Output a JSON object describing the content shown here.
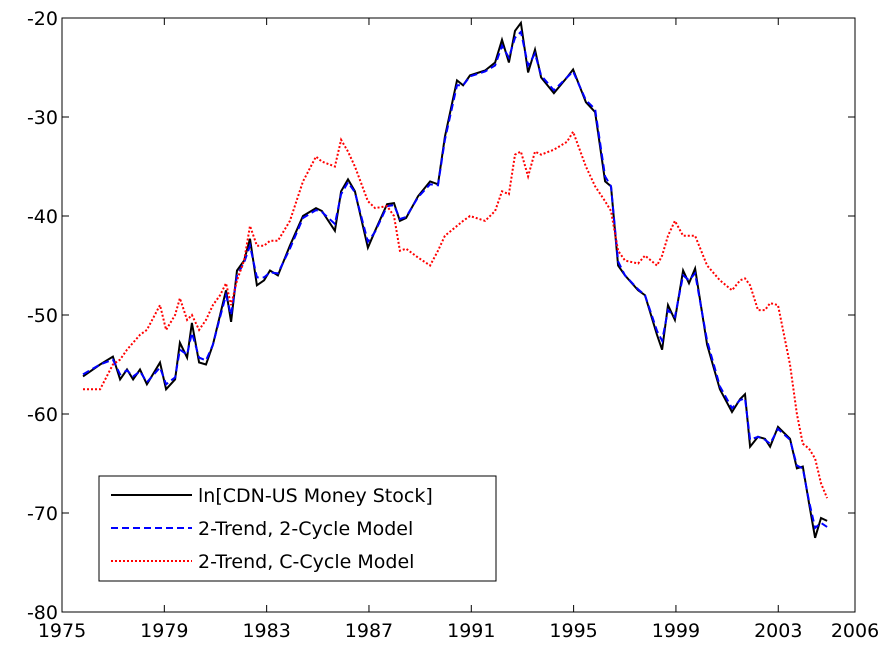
{
  "chart_data": {
    "type": "line",
    "x": [
      1975.82,
      1976.49,
      1976.99,
      1977.27,
      1977.54,
      1977.78,
      1978.05,
      1978.32,
      1978.83,
      1979.07,
      1979.42,
      1979.61,
      1979.89,
      1980.08,
      1980.36,
      1980.63,
      1980.9,
      1981.18,
      1981.41,
      1981.61,
      1981.84,
      1982.12,
      1982.35,
      1982.62,
      1982.9,
      1983.13,
      1983.44,
      1983.91,
      1984.42,
      1984.93,
      1985.16,
      1985.67,
      1985.91,
      1986.18,
      1986.45,
      1986.96,
      1987.24,
      1987.71,
      1987.98,
      1988.21,
      1988.45,
      1988.92,
      1989.39,
      1989.7,
      1989.97,
      1990.44,
      1990.68,
      1990.95,
      1991.54,
      1991.93,
      1992.2,
      1992.47,
      1992.71,
      1992.94,
      1993.22,
      1993.49,
      1993.73,
      1994.23,
      1994.74,
      1994.98,
      1995.48,
      1995.84,
      1996.23,
      1996.46,
      1996.74,
      1997.01,
      1997.52,
      1997.79,
      1998.26,
      1998.46,
      1998.69,
      1998.96,
      1999.28,
      1999.51,
      1999.75,
      2000.22,
      2000.72,
      2001.19,
      2001.51,
      2001.7,
      2001.9,
      2002.21,
      2002.48,
      2002.68,
      2002.99,
      2003.46,
      2003.73,
      2003.96,
      2004.2,
      2004.44,
      2004.67,
      2004.91
    ],
    "series": [
      {
        "name": "ln[CDN-US Money Stock]",
        "color": "#000000",
        "style": "solid",
        "values": [
          -56.2,
          -55,
          -54.2,
          -56.5,
          -55.5,
          -56.5,
          -55.5,
          -57,
          -54.8,
          -57.5,
          -56.5,
          -52.8,
          -54.3,
          -50.8,
          -54.8,
          -55,
          -53,
          -50,
          -47.5,
          -50.7,
          -45.5,
          -44.5,
          -42.3,
          -47,
          -46.5,
          -45.5,
          -46,
          -43,
          -40,
          -39.2,
          -39.5,
          -41.5,
          -37.5,
          -36.3,
          -37.5,
          -43.2,
          -41.5,
          -38.8,
          -38.7,
          -40.5,
          -40.2,
          -38,
          -36.5,
          -36.8,
          -32,
          -26.3,
          -26.8,
          -25.8,
          -25.3,
          -24.5,
          -22.2,
          -24.5,
          -21.3,
          -20.5,
          -25.5,
          -23.2,
          -26,
          -27.6,
          -26,
          -25.2,
          -28.5,
          -29.5,
          -36.5,
          -37,
          -45,
          -46,
          -47.5,
          -48,
          -52,
          -53.5,
          -49,
          -50.5,
          -45.5,
          -46.8,
          -45.3,
          -53,
          -57.5,
          -59.8,
          -58.5,
          -58,
          -63.3,
          -62.3,
          -62.5,
          -63.3,
          -61.3,
          -62.5,
          -65.5,
          -65.3,
          -69,
          -72.5,
          -70.5,
          -70.8
        ]
      },
      {
        "name": "2-Trend, 2-Cycle Model",
        "color": "#0000ff",
        "style": "dashed",
        "values": [
          -56,
          -55,
          -54.5,
          -56,
          -55.6,
          -56.2,
          -55.7,
          -56.8,
          -55.3,
          -57,
          -56.3,
          -53.5,
          -54,
          -51.8,
          -54.3,
          -54.6,
          -53,
          -50.2,
          -48,
          -50,
          -46,
          -44.7,
          -43,
          -46.2,
          -46.2,
          -45.7,
          -45.8,
          -43.3,
          -40.2,
          -39.4,
          -39.6,
          -40.8,
          -37.8,
          -36.6,
          -37.6,
          -42.6,
          -41.6,
          -39,
          -38.9,
          -40.3,
          -40.1,
          -38.1,
          -36.8,
          -36.9,
          -32.3,
          -26.8,
          -26.8,
          -25.9,
          -25.4,
          -24.8,
          -22.8,
          -24,
          -22,
          -21.4,
          -24.8,
          -23.6,
          -25.8,
          -27.3,
          -26,
          -25.4,
          -28.3,
          -29.2,
          -36,
          -37,
          -44.6,
          -46,
          -47.4,
          -48,
          -51.6,
          -52.6,
          -49.5,
          -50.2,
          -46,
          -46.5,
          -45.8,
          -52.6,
          -57.2,
          -59.4,
          -58.6,
          -58.4,
          -62.6,
          -62.3,
          -62.6,
          -63,
          -61.5,
          -62.6,
          -65.2,
          -65.5,
          -68.8,
          -71.5,
          -71,
          -71.4
        ]
      },
      {
        "name": "2-Trend, C-Cycle Model",
        "color": "#ff0000",
        "style": "dotted",
        "values": [
          -57.5,
          -57.5,
          -55,
          -54.5,
          -53.5,
          -52.8,
          -52,
          -51.5,
          -49,
          -51.5,
          -50,
          -48.3,
          -50.5,
          -50,
          -51.5,
          -50.5,
          -49,
          -48,
          -46.8,
          -49,
          -46.5,
          -44.5,
          -41,
          -43,
          -43,
          -42.5,
          -42.5,
          -40.5,
          -36.5,
          -34,
          -34.5,
          -35,
          -32.3,
          -33.5,
          -35,
          -38.5,
          -39.2,
          -39,
          -40,
          -43.5,
          -43.3,
          -44.2,
          -45,
          -43.5,
          -42,
          -41,
          -40.5,
          -40,
          -40.5,
          -39.5,
          -37.5,
          -37.8,
          -33.8,
          -33.5,
          -36,
          -33.5,
          -33.8,
          -33.3,
          -32.5,
          -31.5,
          -35,
          -37,
          -38.5,
          -39.5,
          -43.5,
          -44.5,
          -44.8,
          -44,
          -45,
          -44,
          -42,
          -40.5,
          -42,
          -42,
          -42,
          -45,
          -46.5,
          -47.5,
          -46.5,
          -46.3,
          -47,
          -49.5,
          -49.5,
          -48.8,
          -49,
          -55,
          -60,
          -63,
          -63.5,
          -64.5,
          -67,
          -68.5
        ]
      }
    ],
    "xlim": [
      1975,
      2006
    ],
    "xticks": [
      1975,
      1979,
      1983,
      1987,
      1991,
      1995,
      1999,
      2003,
      2006
    ],
    "ylim": [
      -80,
      -20
    ],
    "yticks": [
      -80,
      -70,
      -60,
      -50,
      -40,
      -30,
      -20
    ],
    "grid": false,
    "legend": "lower left"
  }
}
